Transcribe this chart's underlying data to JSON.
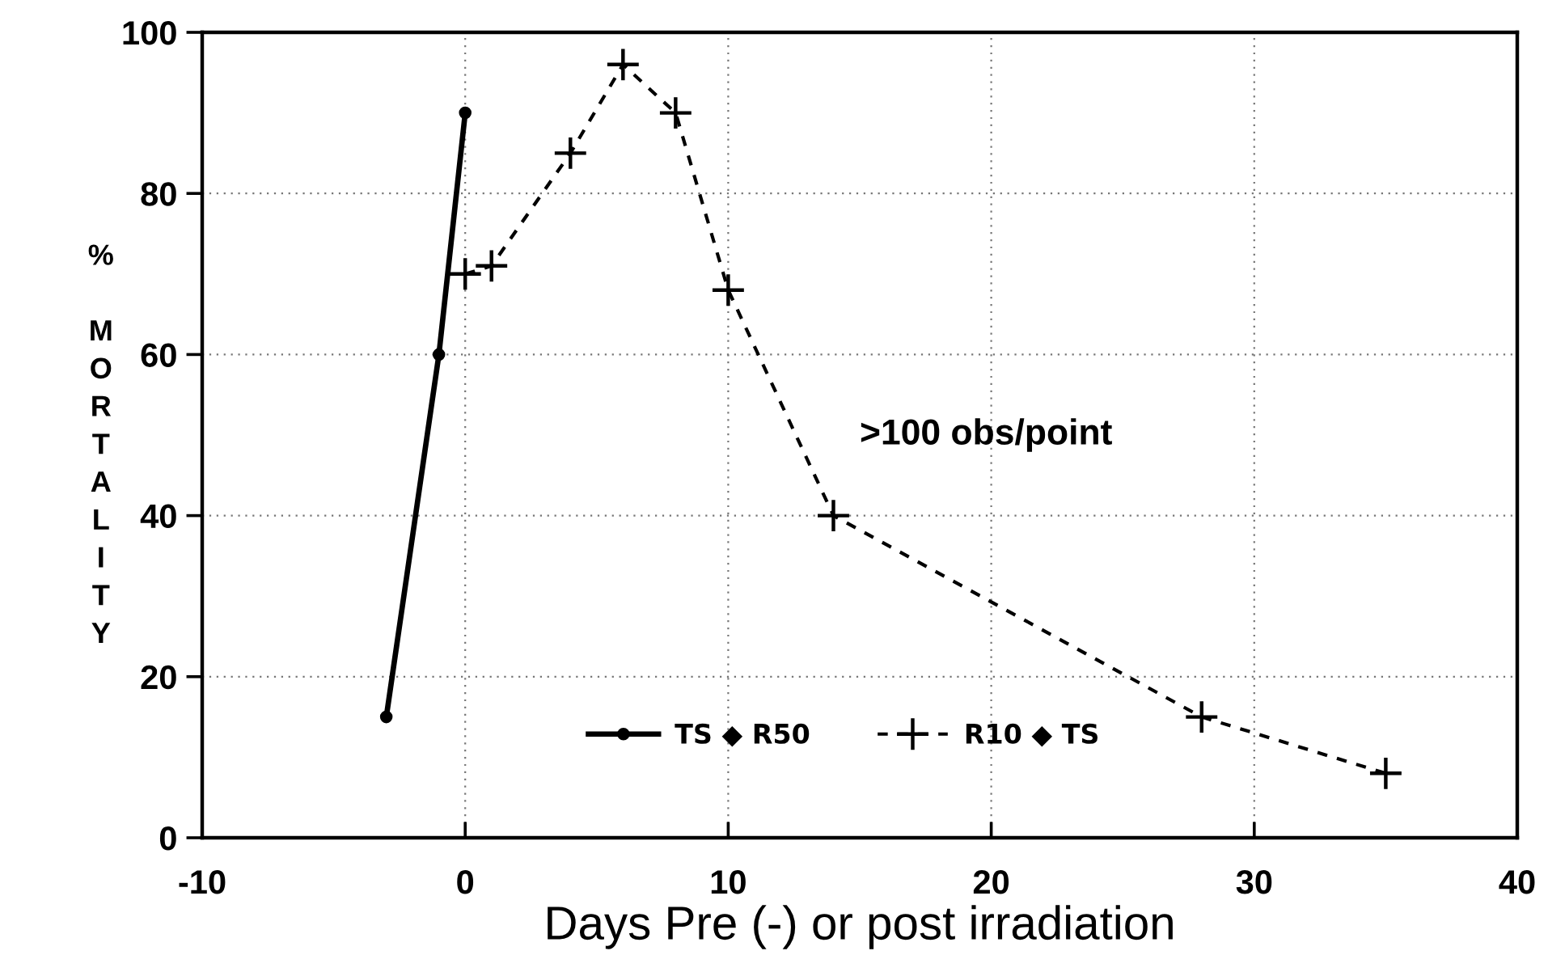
{
  "chart_data": {
    "type": "line",
    "xlabel": "Days Pre (-) or post irradiation",
    "ylabel": "% MORTALITY",
    "annotations": [
      ">100 obs/point"
    ],
    "xlim": [
      -10,
      40
    ],
    "xticks": [
      -10,
      0,
      10,
      20,
      30,
      40
    ],
    "ylim": [
      0,
      100
    ],
    "yticks": [
      0,
      20,
      40,
      60,
      80,
      100
    ],
    "grid": true,
    "legend": "bottom",
    "series": [
      {
        "name": "TS ◆ R50",
        "color": "#000000",
        "x": [
          -3,
          -1,
          0
        ],
        "values": [
          15,
          60,
          90
        ],
        "marker": "circle",
        "line_style": "solid"
      },
      {
        "name": "R10 ◆ TS",
        "color": "#000000",
        "x": [
          0,
          1,
          4,
          6,
          8,
          10,
          14,
          28,
          35
        ],
        "values": [
          70,
          71,
          85,
          96,
          90,
          68,
          40,
          15,
          8
        ],
        "marker": "cross",
        "line_style": "dashed"
      }
    ]
  }
}
